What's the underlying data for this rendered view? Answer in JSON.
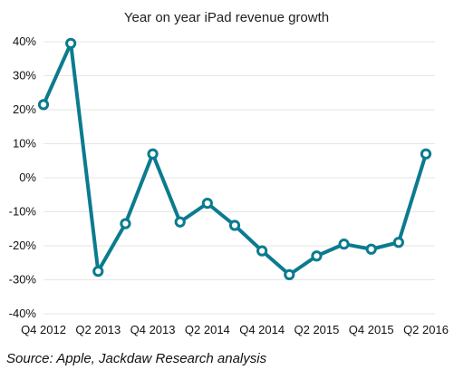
{
  "chart_data": {
    "type": "line",
    "title": "Year on year iPad revenue growth",
    "source": "Source: Apple, Jackdaw Research analysis",
    "x": [
      "Q4 2012",
      "Q1 2013",
      "Q2 2013",
      "Q3 2013",
      "Q4 2013",
      "Q1 2014",
      "Q2 2014",
      "Q3 2014",
      "Q4 2014",
      "Q1 2015",
      "Q2 2015",
      "Q3 2015",
      "Q4 2015",
      "Q1 2016",
      "Q2 2016"
    ],
    "x_tick_labels": [
      "Q4 2012",
      "Q2 2013",
      "Q4 2013",
      "Q2 2014",
      "Q4 2014",
      "Q2 2015",
      "Q4 2015",
      "Q2 2016"
    ],
    "y_tick_labels": [
      "40%",
      "30%",
      "20%",
      "10%",
      "0%",
      "-10%",
      "-20%",
      "-30%",
      "-40%"
    ],
    "ylim": [
      -40,
      40
    ],
    "y_ticks": [
      40,
      30,
      20,
      10,
      0,
      -10,
      -20,
      -30,
      -40
    ],
    "series": [
      {
        "values": [
          21.5,
          39.5,
          -27.5,
          -13.5,
          7.0,
          -13.0,
          -7.5,
          -14.0,
          -21.5,
          -28.5,
          -23.0,
          -19.5,
          -21.0,
          -19.0,
          7.0
        ]
      }
    ],
    "grid": true,
    "line_color": "#0b7b8f",
    "marker_fill": "#ffffff",
    "grid_color": "#e6e6e6"
  }
}
